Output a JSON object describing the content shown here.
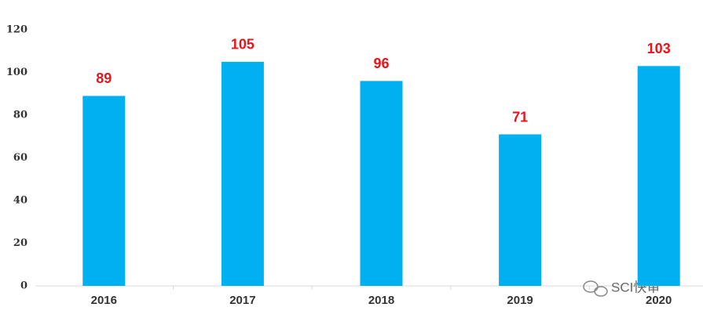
{
  "chart_data": {
    "type": "bar",
    "categories": [
      "2016",
      "2017",
      "2018",
      "2019",
      "2020"
    ],
    "values": [
      89,
      105,
      96,
      71,
      103
    ],
    "color": "#00b0f0",
    "label_color": "#e8141c",
    "ylim": [
      0,
      120
    ],
    "yticks": [
      0,
      20,
      40,
      60,
      80,
      100,
      120
    ],
    "grid": false
  },
  "watermark": "SCI快审"
}
